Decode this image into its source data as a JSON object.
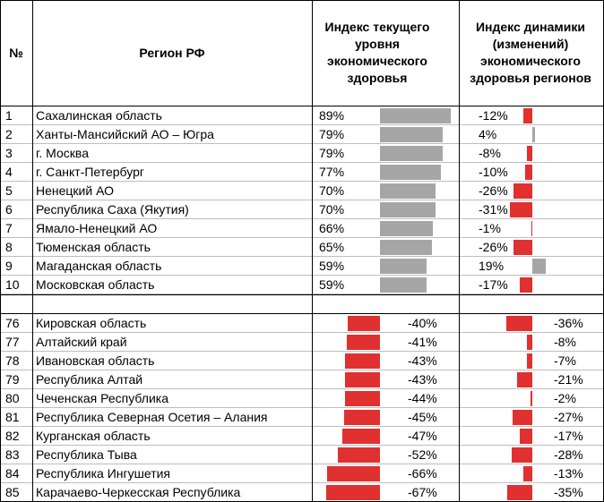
{
  "header": {
    "col_num": "№",
    "col_region": "Регион РФ",
    "col_current": "Индекс текущего уровня экономического здоровья",
    "col_dynamics": "Индекс динамики (изменений) экономического здоровья регионов"
  },
  "colors": {
    "positive_bar": "#a6a6a6",
    "negative_bar": "#e03030",
    "grid_major": "#000000",
    "grid_minor": "#bdbdbd"
  },
  "chart_data": {
    "type": "table",
    "columns": [
      "№",
      "Регион РФ",
      "Индекс текущего уровня экономического здоровья",
      "Индекс динамики (изменений) экономического здоровья регионов"
    ],
    "top": [
      {
        "rank": "1",
        "region": "Сахалинская область",
        "current": 89,
        "current_label": "89%",
        "dynamic": -12,
        "dynamic_label": "-12%"
      },
      {
        "rank": "2",
        "region": "Ханты-Мансийский АО – Югра",
        "current": 79,
        "current_label": "79%",
        "dynamic": 4,
        "dynamic_label": "4%"
      },
      {
        "rank": "3",
        "region": "г. Москва",
        "current": 79,
        "current_label": "79%",
        "dynamic": -8,
        "dynamic_label": "-8%"
      },
      {
        "rank": "4",
        "region": "г. Санкт-Петербург",
        "current": 77,
        "current_label": "77%",
        "dynamic": -10,
        "dynamic_label": "-10%"
      },
      {
        "rank": "5",
        "region": "Ненецкий АО",
        "current": 70,
        "current_label": "70%",
        "dynamic": -26,
        "dynamic_label": "-26%"
      },
      {
        "rank": "6",
        "region": "Республика Саха (Якутия)",
        "current": 70,
        "current_label": "70%",
        "dynamic": -31,
        "dynamic_label": "-31%"
      },
      {
        "rank": "7",
        "region": "Ямало-Ненецкий АО",
        "current": 66,
        "current_label": "66%",
        "dynamic": -1,
        "dynamic_label": "-1%"
      },
      {
        "rank": "8",
        "region": "Тюменская область",
        "current": 65,
        "current_label": "65%",
        "dynamic": -26,
        "dynamic_label": "-26%"
      },
      {
        "rank": "9",
        "region": "Магаданская область",
        "current": 59,
        "current_label": "59%",
        "dynamic": 19,
        "dynamic_label": "19%"
      },
      {
        "rank": "10",
        "region": "Московская область",
        "current": 59,
        "current_label": "59%",
        "dynamic": -17,
        "dynamic_label": "-17%"
      }
    ],
    "bottom": [
      {
        "rank": "76",
        "region": "Кировская область",
        "current": -40,
        "current_label": "-40%",
        "dynamic": -36,
        "dynamic_label": "-36%"
      },
      {
        "rank": "77",
        "region": "Алтайский край",
        "current": -41,
        "current_label": "-41%",
        "dynamic": -8,
        "dynamic_label": "-8%"
      },
      {
        "rank": "78",
        "region": "Ивановская область",
        "current": -43,
        "current_label": "-43%",
        "dynamic": -7,
        "dynamic_label": "-7%"
      },
      {
        "rank": "79",
        "region": "Республика Алтай",
        "current": -43,
        "current_label": "-43%",
        "dynamic": -21,
        "dynamic_label": "-21%"
      },
      {
        "rank": "80",
        "region": "Чеченская Республика",
        "current": -44,
        "current_label": "-44%",
        "dynamic": -2,
        "dynamic_label": "-2%"
      },
      {
        "rank": "81",
        "region": "Республика Северная Осетия – Алания",
        "current": -45,
        "current_label": "-45%",
        "dynamic": -27,
        "dynamic_label": "-27%"
      },
      {
        "rank": "82",
        "region": "Курганская область",
        "current": -47,
        "current_label": "-47%",
        "dynamic": -17,
        "dynamic_label": "-17%"
      },
      {
        "rank": "83",
        "region": "Республика Тыва",
        "current": -52,
        "current_label": "-52%",
        "dynamic": -28,
        "dynamic_label": "-28%"
      },
      {
        "rank": "84",
        "region": "Республика Ингушетия",
        "current": -66,
        "current_label": "-66%",
        "dynamic": -13,
        "dynamic_label": "-13%"
      },
      {
        "rank": "85",
        "region": "Карачаево-Черкесская Республика",
        "current": -67,
        "current_label": "-67%",
        "dynamic": -35,
        "dynamic_label": "-35%"
      }
    ]
  }
}
